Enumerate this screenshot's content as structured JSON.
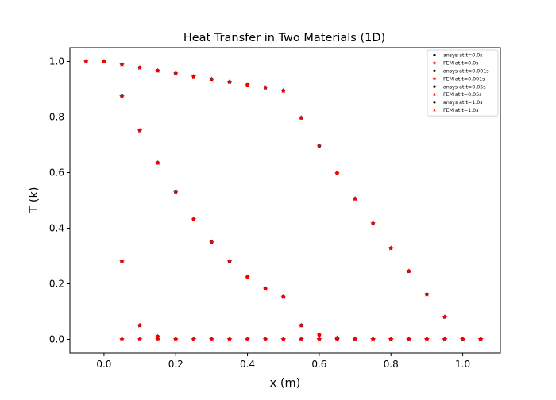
{
  "chart_data": {
    "type": "scatter",
    "title": "Heat Transfer in Two Materials (1D)",
    "xlabel": "x (m)",
    "ylabel": "T (k)",
    "xlim": [
      -0.095,
      1.105
    ],
    "ylim": [
      -0.05,
      1.05
    ],
    "x_ticks": [
      0.0,
      0.2,
      0.4,
      0.6,
      0.8,
      1.0
    ],
    "x_tick_labels": [
      "0.0",
      "0.2",
      "0.4",
      "0.6",
      "0.8",
      "1.0"
    ],
    "y_ticks": [
      0.0,
      0.2,
      0.4,
      0.6,
      0.8,
      1.0
    ],
    "y_tick_labels": [
      "0.0",
      "0.2",
      "0.4",
      "0.6",
      "0.8",
      "1.0"
    ],
    "grid": false,
    "legend_position": "top-right",
    "series": [
      {
        "name": "ansys at t=0.0s",
        "color": "#000000",
        "marker": "circle",
        "x": [
          -0.05,
          0.0,
          0.05,
          0.1,
          0.15,
          0.2,
          0.25,
          0.3,
          0.35,
          0.4,
          0.45,
          0.5,
          0.55,
          0.6,
          0.65,
          0.7,
          0.75,
          0.8,
          0.85,
          0.9,
          0.95,
          1.0,
          1.05
        ],
        "y": [
          1.0,
          1.0,
          0.0,
          0.0,
          0.0,
          0.0,
          0.0,
          0.0,
          0.0,
          0.0,
          0.0,
          0.0,
          0.0,
          0.0,
          0.0,
          0.0,
          0.0,
          0.0,
          0.0,
          0.0,
          0.0,
          0.0,
          0.0
        ]
      },
      {
        "name": "FEM at t=0.0s",
        "color": "#ff0000",
        "marker": "star",
        "x": [
          -0.05,
          0.0,
          0.05,
          0.1,
          0.15,
          0.2,
          0.25,
          0.3,
          0.35,
          0.4,
          0.45,
          0.5,
          0.55,
          0.6,
          0.65,
          0.7,
          0.75,
          0.8,
          0.85,
          0.9,
          0.95,
          1.0,
          1.05
        ],
        "y": [
          1.0,
          1.0,
          0.0,
          0.0,
          0.0,
          0.0,
          0.0,
          0.0,
          0.0,
          0.0,
          0.0,
          0.0,
          0.0,
          0.0,
          0.0,
          0.0,
          0.0,
          0.0,
          0.0,
          0.0,
          0.0,
          0.0,
          0.0
        ]
      },
      {
        "name": "ansys at t=0.001s",
        "color": "#000000",
        "marker": "circle",
        "x": [
          0.05,
          0.1,
          0.15,
          0.2,
          0.25,
          0.3,
          0.35,
          0.4,
          0.45,
          0.5,
          0.55,
          0.6,
          0.65,
          0.7,
          0.75,
          0.8,
          0.85,
          0.9,
          0.95,
          1.0,
          1.05
        ],
        "y": [
          0.28,
          0.05,
          0.01,
          0.0,
          0.0,
          0.0,
          0.0,
          0.0,
          0.0,
          0.0,
          0.0,
          0.0,
          0.0,
          0.0,
          0.0,
          0.0,
          0.0,
          0.0,
          0.0,
          0.0,
          0.0
        ]
      },
      {
        "name": "FEM at t=0.001s",
        "color": "#ff0000",
        "marker": "star",
        "x": [
          0.05,
          0.1,
          0.15,
          0.2,
          0.25,
          0.3,
          0.35,
          0.4,
          0.45,
          0.5,
          0.55,
          0.6,
          0.65,
          0.7,
          0.75,
          0.8,
          0.85,
          0.9,
          0.95,
          1.0,
          1.05
        ],
        "y": [
          0.28,
          0.05,
          0.01,
          0.0,
          0.0,
          0.0,
          0.0,
          0.0,
          0.0,
          0.0,
          0.0,
          0.0,
          0.0,
          0.0,
          0.0,
          0.0,
          0.0,
          0.0,
          0.0,
          0.0,
          0.0
        ]
      },
      {
        "name": "ansys at t=0.05s",
        "color": "#000000",
        "marker": "circle",
        "x": [
          0.05,
          0.1,
          0.15,
          0.2,
          0.25,
          0.3,
          0.35,
          0.4,
          0.45,
          0.5,
          0.55,
          0.6,
          0.65,
          0.7,
          0.75,
          0.8,
          0.85,
          0.9,
          0.95,
          1.0,
          1.05
        ],
        "y": [
          0.875,
          0.752,
          0.635,
          0.53,
          0.432,
          0.35,
          0.28,
          0.224,
          0.182,
          0.153,
          0.05,
          0.016,
          0.005,
          0.001,
          0.0,
          0.0,
          0.0,
          0.0,
          0.0,
          0.0,
          0.0
        ]
      },
      {
        "name": "FEM at t=0.05s",
        "color": "#ff0000",
        "marker": "star",
        "x": [
          0.05,
          0.1,
          0.15,
          0.2,
          0.25,
          0.3,
          0.35,
          0.4,
          0.45,
          0.5,
          0.55,
          0.6,
          0.65,
          0.7,
          0.75,
          0.8,
          0.85,
          0.9,
          0.95,
          1.0,
          1.05
        ],
        "y": [
          0.875,
          0.752,
          0.635,
          0.53,
          0.432,
          0.35,
          0.28,
          0.224,
          0.182,
          0.153,
          0.05,
          0.016,
          0.005,
          0.001,
          0.0,
          0.0,
          0.0,
          0.0,
          0.0,
          0.0,
          0.0
        ]
      },
      {
        "name": "ansys at t=1.0s",
        "color": "#000000",
        "marker": "circle",
        "x": [
          0.05,
          0.1,
          0.15,
          0.2,
          0.25,
          0.3,
          0.35,
          0.4,
          0.45,
          0.5,
          0.55,
          0.6,
          0.65,
          0.7,
          0.75,
          0.8,
          0.85,
          0.9,
          0.95,
          1.0,
          1.05
        ],
        "y": [
          0.99,
          0.978,
          0.967,
          0.957,
          0.946,
          0.936,
          0.926,
          0.916,
          0.906,
          0.895,
          0.797,
          0.696,
          0.598,
          0.506,
          0.417,
          0.328,
          0.245,
          0.162,
          0.08,
          0.0,
          0.0
        ]
      },
      {
        "name": "FEM at t=1.0s",
        "color": "#ff0000",
        "marker": "star",
        "x": [
          0.05,
          0.1,
          0.15,
          0.2,
          0.25,
          0.3,
          0.35,
          0.4,
          0.45,
          0.5,
          0.55,
          0.6,
          0.65,
          0.7,
          0.75,
          0.8,
          0.85,
          0.9,
          0.95,
          1.0,
          1.05
        ],
        "y": [
          0.99,
          0.978,
          0.967,
          0.957,
          0.946,
          0.936,
          0.926,
          0.916,
          0.906,
          0.895,
          0.797,
          0.696,
          0.598,
          0.506,
          0.417,
          0.328,
          0.245,
          0.162,
          0.08,
          0.0,
          0.0
        ]
      }
    ]
  }
}
